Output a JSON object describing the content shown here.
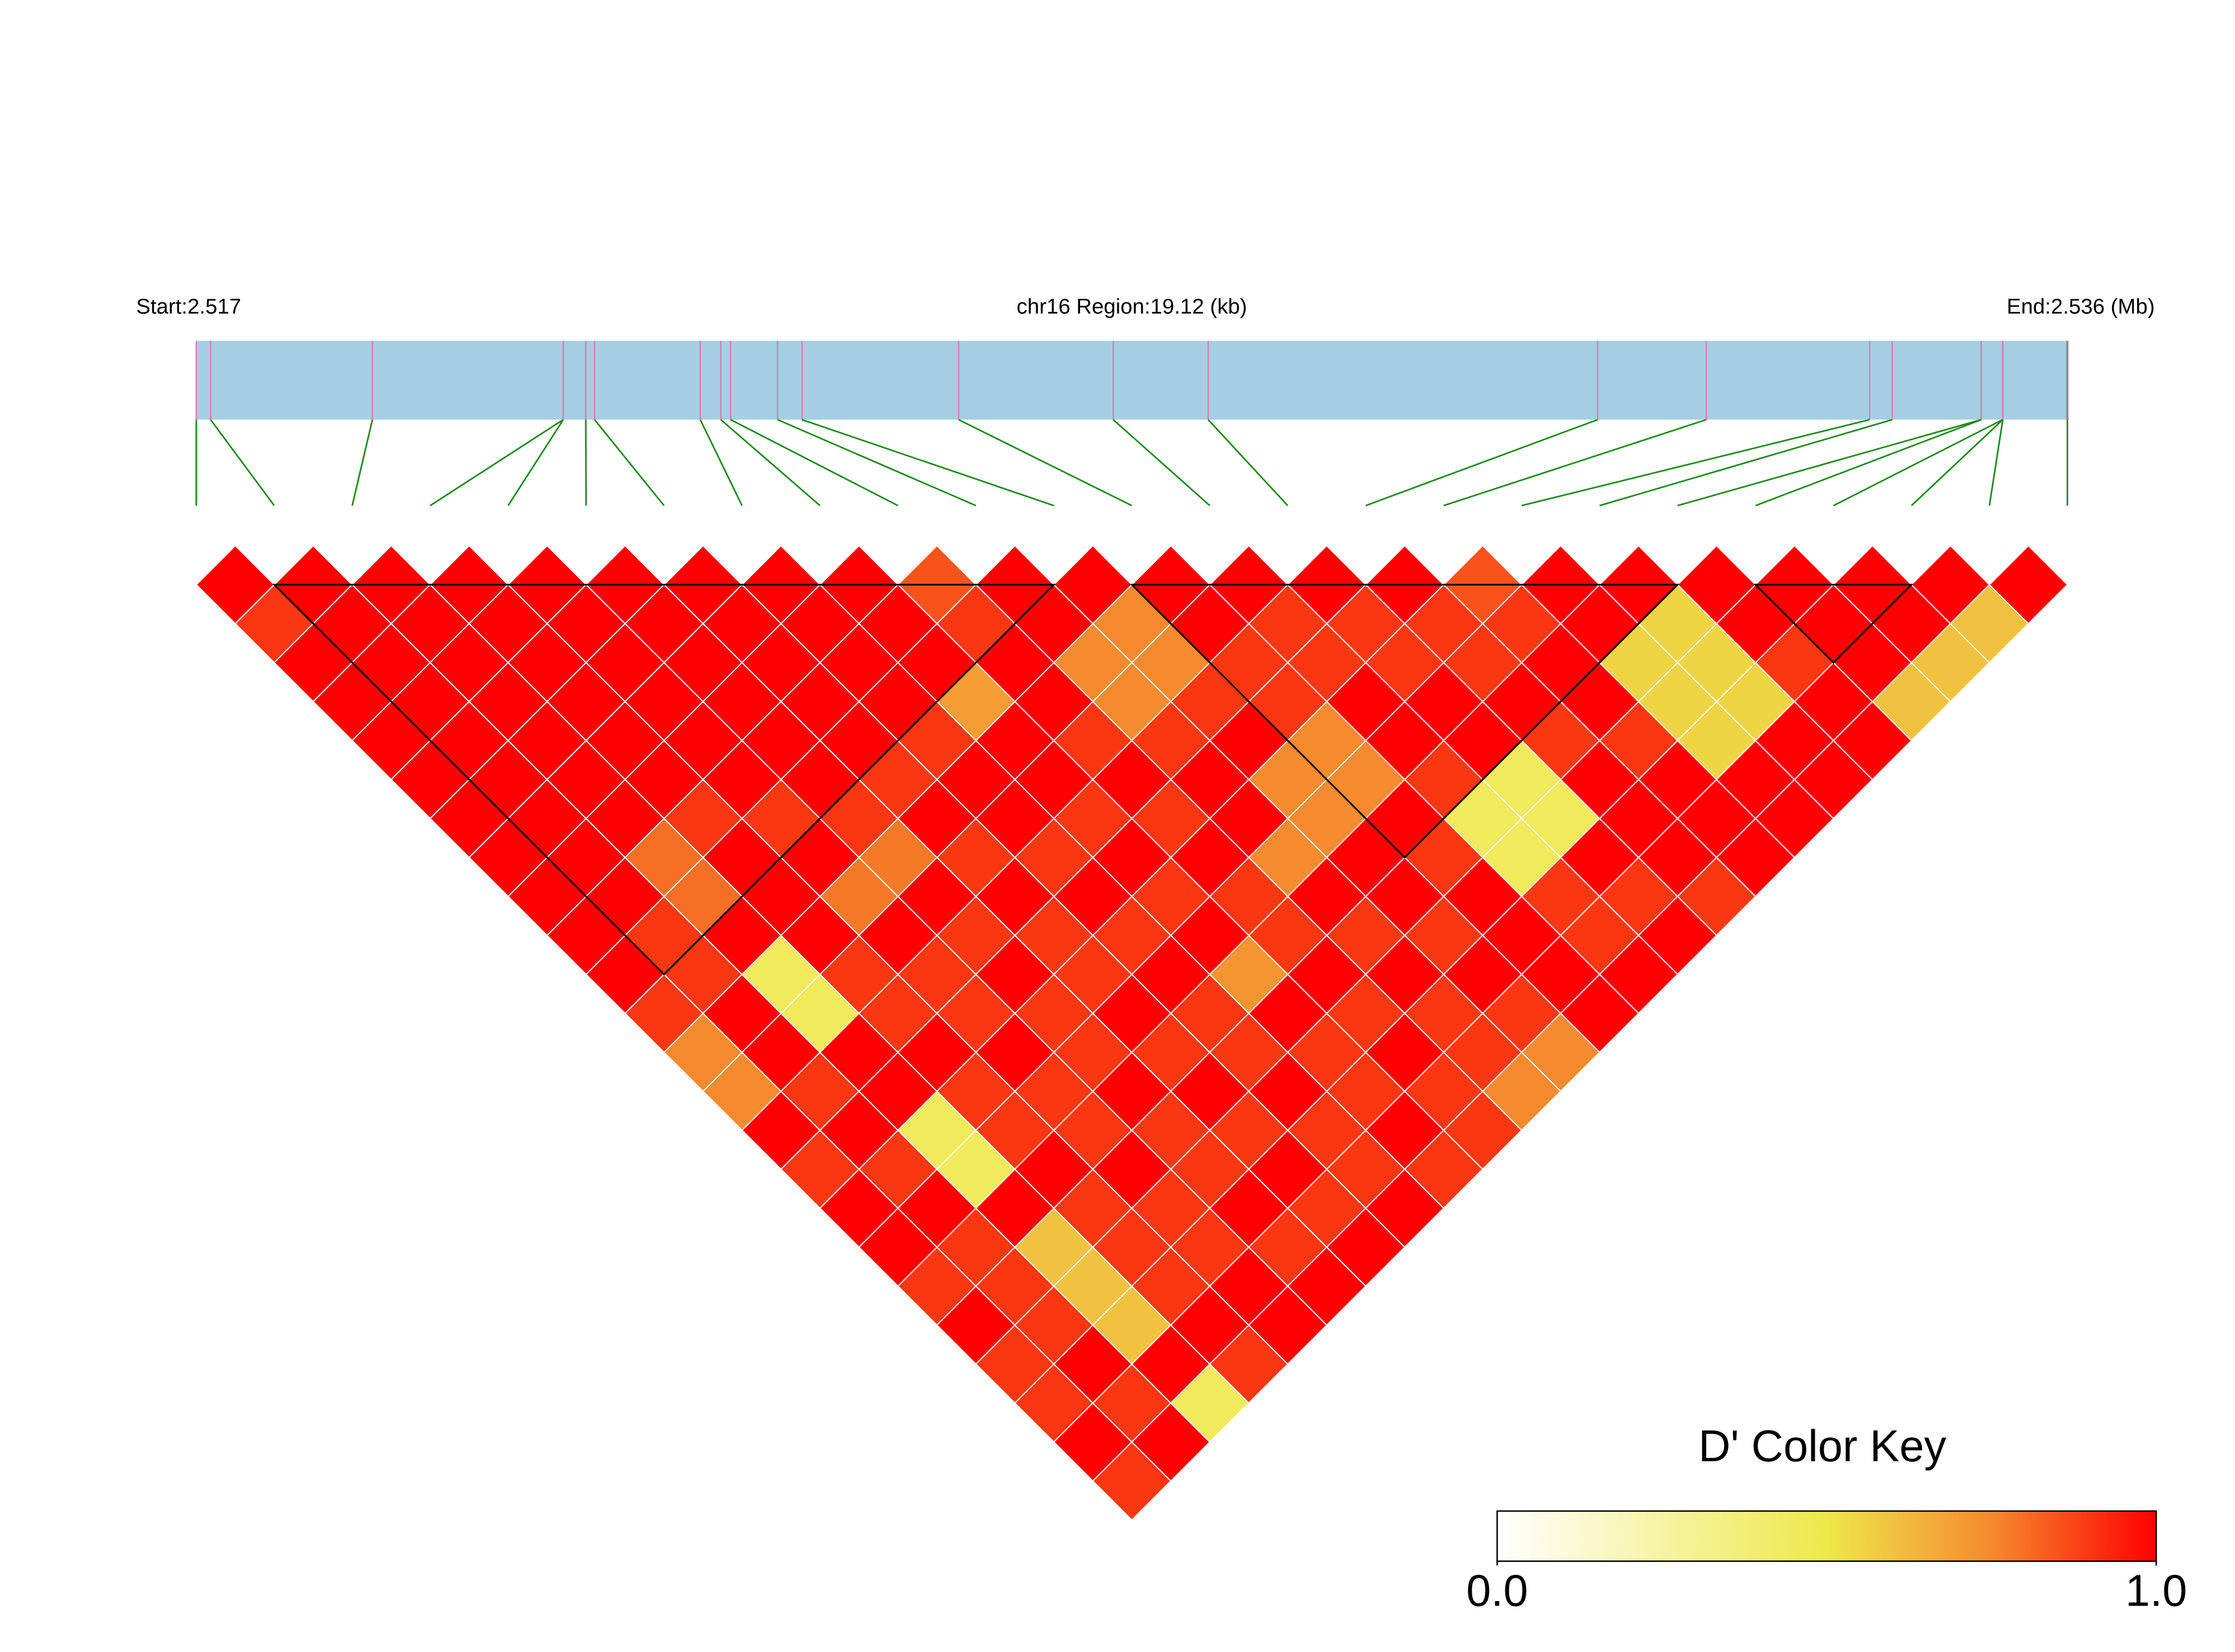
{
  "chart_data": {
    "type": "ld-heatmap",
    "start_label": "Start:2.517",
    "region_label": "chr16 Region:19.12 (kb)",
    "end_label": "End:2.536 (Mb)",
    "track_xlim": [
      0,
      19.12
    ],
    "snp_positions_kb": [
      0,
      0.146,
      1.8,
      3.75,
      3.75,
      3.98,
      4.07,
      5.15,
      5.36,
      5.46,
      5.94,
      6.19,
      7.79,
      9.37,
      10.34,
      14.32,
      15.43,
      17.1,
      17.33,
      18.24,
      18.24,
      18.46,
      18.46,
      18.46,
      19.12
    ],
    "track_color": "#a6cee3",
    "snp_line_color": "#e07bb5",
    "connector_color": "#1a8a1a",
    "dprime": [
      [
        1,
        0.9,
        1,
        1,
        1,
        1,
        1,
        1,
        1,
        1,
        1,
        0.9,
        0.75,
        0.75,
        1,
        0.9,
        1,
        1,
        0.9,
        1,
        0.9,
        0.9,
        1,
        0.9
      ],
      [
        1,
        1,
        1,
        1,
        1,
        1,
        1,
        1,
        1,
        0.9,
        0.9,
        1,
        1,
        0.9,
        1,
        0.9,
        1,
        0.9,
        0.9,
        0.9,
        1,
        0.9,
        1
      ],
      [
        1,
        1,
        1,
        1,
        1,
        1,
        1,
        0.8,
        0.8,
        1,
        0.45,
        0.45,
        1,
        1,
        0.45,
        0.45,
        1,
        0.6,
        0.6,
        0.6,
        1,
        0.45
      ],
      [
        1,
        1,
        1,
        1,
        1,
        1,
        0.9,
        1,
        1,
        1,
        0.9,
        0.9,
        1,
        0.9,
        0.9,
        1,
        0.9,
        0.9,
        0.9,
        1,
        0.9
      ],
      [
        1,
        1,
        1,
        1,
        1,
        1,
        0.9,
        1,
        0.78,
        1,
        0.9,
        0.9,
        1,
        0.9,
        0.9,
        1,
        0.9,
        0.9,
        1,
        1
      ],
      [
        1,
        1,
        1,
        1,
        1,
        1,
        0.9,
        0.78,
        1,
        0.9,
        1,
        0.9,
        0.9,
        1,
        0.9,
        0.9,
        1,
        0.9,
        1
      ],
      [
        1,
        1,
        1,
        1,
        1,
        0.9,
        1,
        0.9,
        1,
        0.9,
        0.9,
        1,
        0.9,
        1,
        0.9,
        1,
        0.9,
        1
      ],
      [
        1,
        1,
        1,
        1,
        0.9,
        1,
        1,
        0.9,
        1,
        0.9,
        1,
        0.9,
        0.9,
        1,
        0.9,
        0.9,
        1
      ],
      [
        1,
        1,
        1,
        0.7,
        1,
        1,
        0.9,
        1,
        0.9,
        1,
        0.72,
        1,
        0.9,
        0.9,
        1,
        0.9
      ],
      [
        0.85,
        0.9,
        1,
        1,
        0.9,
        1,
        0.9,
        1,
        0.9,
        0.9,
        1,
        0.9,
        1,
        0.9,
        0.9
      ],
      [
        1,
        1,
        0.75,
        0.75,
        0.9,
        1,
        1,
        0.75,
        1,
        0.9,
        1,
        0.9,
        0.9,
        0.75
      ],
      [
        1,
        0.75,
        0.75,
        0.9,
        1,
        0.75,
        0.75,
        1,
        1,
        0.9,
        1,
        0.9,
        0.75
      ],
      [
        1,
        1,
        0.9,
        0.9,
        0.75,
        0.75,
        1,
        0.9,
        1,
        1,
        1,
        1
      ],
      [
        1,
        0.9,
        0.9,
        1,
        1,
        0.9,
        0.45,
        0.45,
        0.9,
        0.9,
        1
      ],
      [
        1,
        0.9,
        0.9,
        1,
        1,
        0.45,
        0.45,
        1,
        0.9,
        1
      ],
      [
        1,
        0.9,
        0.9,
        1,
        0.9,
        1,
        1,
        1,
        0.9
      ],
      [
        0.85,
        0.9,
        1,
        1,
        0.9,
        1,
        1,
        1
      ],
      [
        1,
        1,
        0.55,
        0.55,
        0.55,
        1,
        1
      ],
      [
        1,
        0.55,
        0.55,
        0.55,
        1,
        1
      ],
      [
        1,
        1,
        0.9,
        1,
        1
      ],
      [
        1,
        1,
        1,
        0.6
      ],
      [
        1,
        1,
        0.6
      ],
      [
        1,
        0.6
      ],
      [
        1
      ]
    ],
    "ld_blocks": [
      [
        1,
        11
      ],
      [
        12,
        19
      ],
      [
        20,
        22
      ]
    ],
    "colorkey_title": "D' Color Key",
    "colorscale": [
      {
        "value": 0,
        "color": "#ffffff"
      },
      {
        "value": 0.5,
        "color": "#eee84a"
      },
      {
        "value": 0.75,
        "color": "#f58a2e"
      },
      {
        "value": 1,
        "color": "#ff0000"
      }
    ],
    "colorkey_ticks": [
      {
        "value": 0,
        "label": "0.0"
      },
      {
        "value": 1,
        "label": "1.0"
      }
    ]
  }
}
